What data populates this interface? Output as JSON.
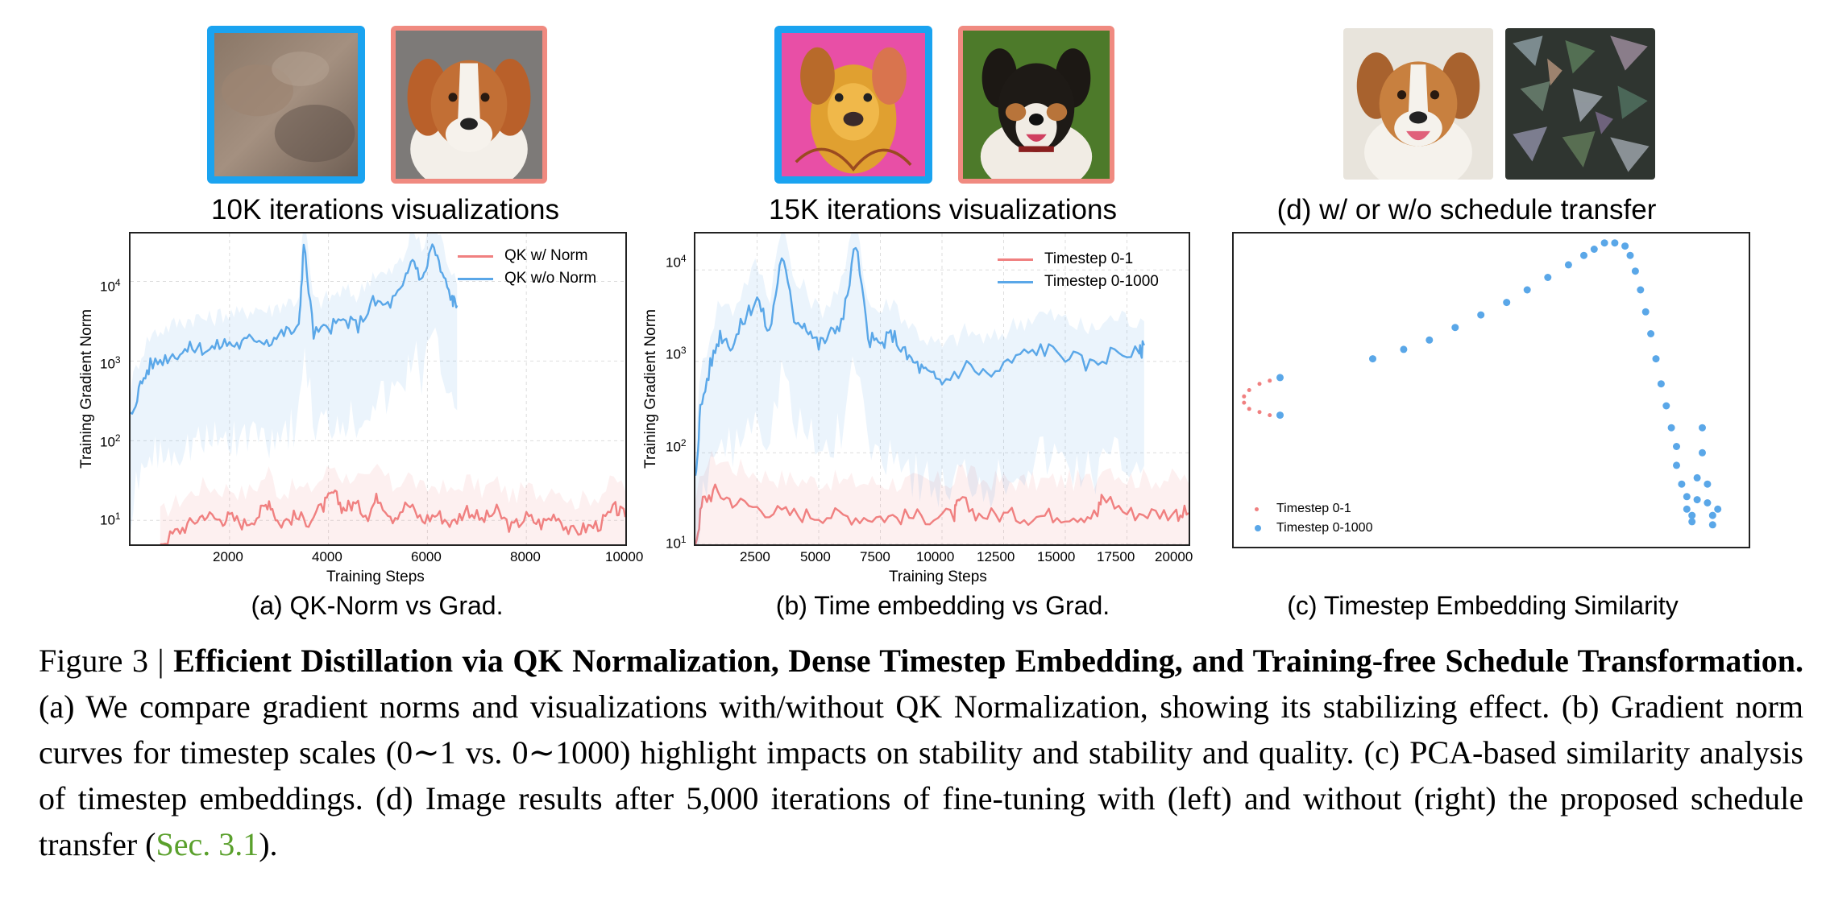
{
  "visualizations": {
    "a_label": "10K iterations visualizations",
    "b_label": "15K iterations visualizations",
    "d_label": "(d) w/ or w/o schedule transfer",
    "border_colors": {
      "with_norm_issue": "#1aa3f0",
      "reference": "#f08a80"
    }
  },
  "subcaptions": {
    "a": "(a) QK-Norm vs Grad.",
    "b": "(b) Time embedding vs Grad.",
    "c": "(c) Timestep Embedding Similarity"
  },
  "chart_data": [
    {
      "type": "line",
      "id": "a",
      "title": "",
      "xlabel": "Training Steps",
      "ylabel": "Training Gradient Norm",
      "yscale": "log",
      "xlim": [
        0,
        10000
      ],
      "ylim": [
        5,
        40000
      ],
      "xticks": [
        "2000",
        "4000",
        "6000",
        "8000",
        "10000"
      ],
      "yticks": [
        {
          "base": "10",
          "exp": "4"
        },
        {
          "base": "10",
          "exp": "3"
        },
        {
          "base": "10",
          "exp": "2"
        },
        {
          "base": "10",
          "exp": "1"
        }
      ],
      "series": [
        {
          "name": "QK w/ Norm",
          "color": "#f08080",
          "x": [
            600,
            900,
            1200,
            1500,
            1800,
            2000,
            2300,
            2600,
            2800,
            3000,
            3300,
            3600,
            3900,
            4100,
            4300,
            4500,
            4800,
            5000,
            5300,
            5600,
            5900,
            6200,
            6500,
            6800,
            7100,
            7400,
            7700,
            8000,
            8300,
            8600,
            8900,
            9200,
            9500,
            9800,
            10000
          ],
          "y": [
            5,
            7,
            9,
            12,
            10,
            11,
            9,
            12,
            18,
            9,
            11,
            10,
            15,
            22,
            14,
            16,
            12,
            20,
            11,
            16,
            10,
            12,
            9,
            14,
            10,
            13,
            8,
            11,
            9,
            12,
            7,
            8,
            9,
            14,
            11
          ]
        },
        {
          "name": "QK w/o Norm",
          "color": "#5aa7e8",
          "x": [
            0,
            200,
            400,
            700,
            1000,
            1300,
            1600,
            1900,
            2200,
            2500,
            2800,
            3100,
            3400,
            3500,
            3700,
            4000,
            4300,
            4600,
            4900,
            5200,
            5500,
            5700,
            5900,
            6100,
            6300,
            6500,
            6600
          ],
          "y": [
            200,
            500,
            900,
            1100,
            1300,
            1500,
            1400,
            1700,
            1600,
            2000,
            1800,
            2300,
            2500,
            30000,
            2200,
            2600,
            3200,
            2800,
            5500,
            5000,
            8000,
            20000,
            10000,
            30000,
            12000,
            6000,
            5000
          ]
        }
      ]
    },
    {
      "type": "line",
      "id": "b",
      "title": "",
      "xlabel": "Training Steps",
      "ylabel": "Training Gradient Norm",
      "yscale": "log",
      "xlim": [
        0,
        20000
      ],
      "ylim": [
        10,
        25000
      ],
      "xticks": [
        "2500",
        "5000",
        "7500",
        "10000",
        "12500",
        "15000",
        "17500",
        "20000"
      ],
      "yticks": [
        {
          "base": "10",
          "exp": "4"
        },
        {
          "base": "10",
          "exp": "3"
        },
        {
          "base": "10",
          "exp": "2"
        },
        {
          "base": "10",
          "exp": "1"
        }
      ],
      "series": [
        {
          "name": "Timestep 0-1",
          "color": "#f08080",
          "x": [
            0,
            300,
            800,
            1500,
            2500,
            3500,
            4500,
            5500,
            6500,
            7500,
            8500,
            9500,
            10500,
            10700,
            11500,
            12500,
            13500,
            14500,
            15500,
            16300,
            16500,
            17500,
            18500,
            19500,
            20000
          ],
          "y": [
            10,
            30,
            38,
            30,
            25,
            22,
            21,
            21,
            20,
            20,
            20,
            20,
            21,
            30,
            21,
            21,
            20,
            21,
            21,
            21,
            35,
            22,
            22,
            22,
            22
          ]
        },
        {
          "name": "Timestep 0-1000",
          "color": "#5aa7e8",
          "x": [
            0,
            200,
            600,
            1000,
            1500,
            2000,
            2500,
            3000,
            3500,
            4000,
            4500,
            5000,
            5500,
            6000,
            6500,
            7000,
            7500,
            8000,
            8500,
            9000,
            9500,
            10000,
            11000,
            12000,
            13000,
            14000,
            15000,
            16000,
            17000,
            18000,
            18200
          ],
          "y": [
            50,
            300,
            900,
            2000,
            1500,
            3000,
            5000,
            2000,
            15000,
            3000,
            2500,
            1500,
            2000,
            3000,
            20000,
            1800,
            1500,
            2000,
            1200,
            900,
            700,
            600,
            900,
            700,
            1100,
            1400,
            1200,
            900,
            1300,
            1200,
            1500
          ]
        }
      ]
    },
    {
      "type": "scatter",
      "id": "c",
      "title": "",
      "xlabel": "",
      "ylabel": "",
      "series": [
        {
          "name": "Timestep 0-1",
          "color": "#f08080",
          "x": [
            0.09,
            0.07,
            0.05,
            0.03,
            0.02,
            0.02,
            0.03,
            0.05,
            0.07,
            0.09
          ],
          "y": [
            0.54,
            0.53,
            0.52,
            0.5,
            0.48,
            0.46,
            0.44,
            0.43,
            0.42,
            0.42
          ]
        },
        {
          "name": "Timestep 0-1000",
          "color": "#5aa7e8",
          "x": [
            0.09,
            0.09,
            0.27,
            0.33,
            0.38,
            0.43,
            0.48,
            0.53,
            0.57,
            0.61,
            0.65,
            0.68,
            0.7,
            0.72,
            0.74,
            0.76,
            0.77,
            0.78,
            0.79,
            0.8,
            0.81,
            0.82,
            0.83,
            0.84,
            0.85,
            0.86,
            0.86,
            0.87,
            0.88,
            0.88,
            0.89,
            0.89,
            0.9,
            0.9,
            0.91,
            0.91,
            0.92,
            0.92,
            0.93,
            0.93,
            0.94
          ],
          "y": [
            0.54,
            0.42,
            0.6,
            0.63,
            0.66,
            0.7,
            0.74,
            0.78,
            0.82,
            0.86,
            0.9,
            0.93,
            0.95,
            0.97,
            0.97,
            0.96,
            0.93,
            0.88,
            0.82,
            0.75,
            0.68,
            0.6,
            0.52,
            0.45,
            0.38,
            0.32,
            0.26,
            0.2,
            0.16,
            0.12,
            0.1,
            0.08,
            0.15,
            0.22,
            0.3,
            0.38,
            0.2,
            0.14,
            0.1,
            0.07,
            0.12
          ]
        }
      ]
    }
  ],
  "legends": {
    "a": [
      "QK w/ Norm",
      "QK w/o Norm"
    ],
    "b": [
      "Timestep 0-1",
      "Timestep 0-1000"
    ],
    "c": [
      "Timestep 0-1",
      "Timestep 0-1000"
    ]
  },
  "caption": {
    "figure_label": "Figure 3 |",
    "title": "Efficient Distillation via QK Normalization, Dense Timestep Embedding, and Training-free Schedule Transformation.",
    "body_1": "(a) We compare gradient norms and visualizations with/without QK Normalization, showing its stabilizing effect. (b) Gradient norm curves for timestep scales (0∼1 vs. 0∼1000) highlight impacts on stability and stability and quality. (c) PCA-based similarity analysis of timestep embeddings. (d) Image results after 5,000 iterations of fine-tuning with (left) and without (right) the proposed schedule transfer (",
    "link": "Sec. 3.1",
    "body_2": ")."
  }
}
